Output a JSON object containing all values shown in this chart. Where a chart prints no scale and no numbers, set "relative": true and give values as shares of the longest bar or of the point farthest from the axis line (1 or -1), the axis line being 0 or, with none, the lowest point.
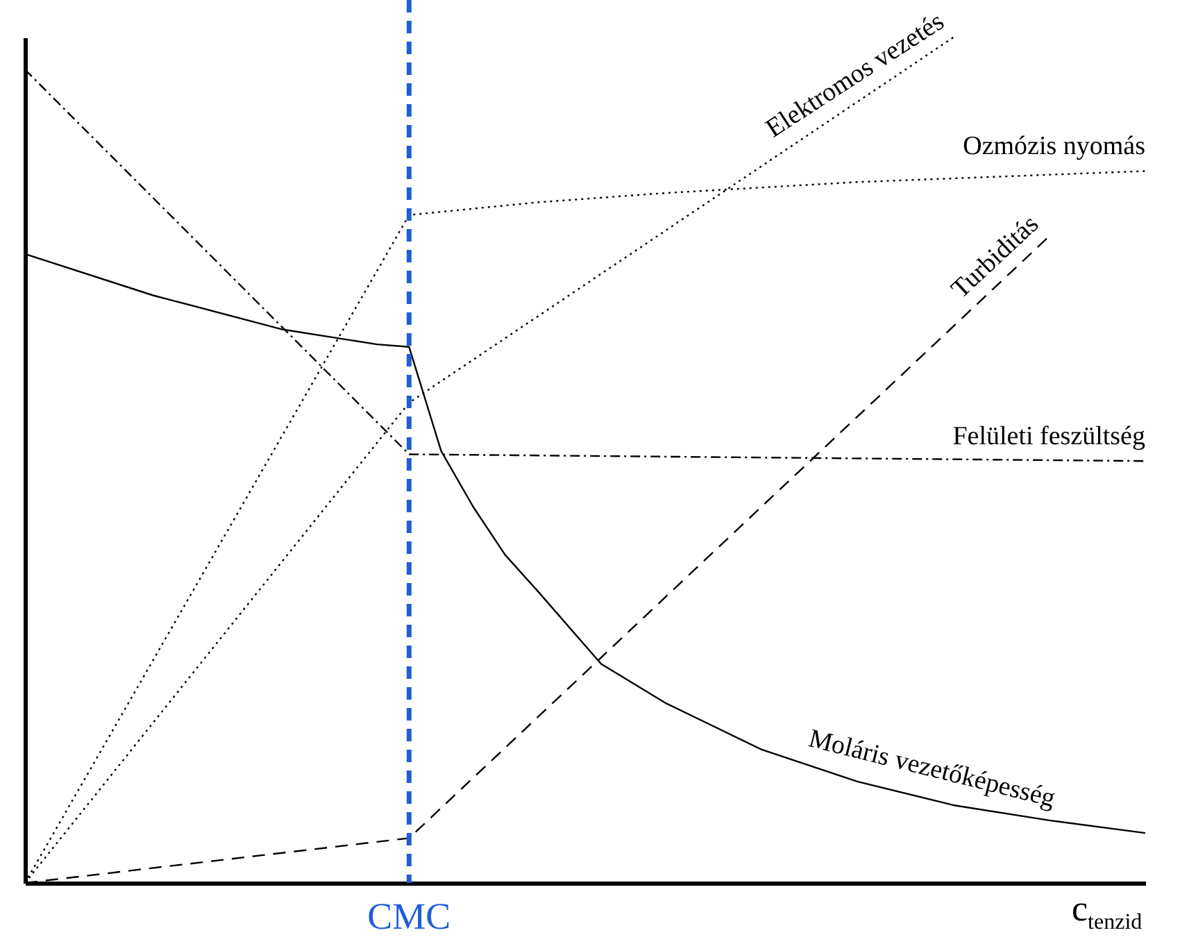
{
  "chart_data": {
    "type": "line",
    "relative": true,
    "xlabel": "c$_{tenzid}$",
    "legend": false,
    "marker": "none",
    "categories": [
      null,
      null,
      null,
      null,
      null,
      null,
      null,
      null,
      null,
      null,
      null,
      null,
      null,
      null,
      null,
      null,
      null,
      null,
      null,
      null,
      null,
      null,
      null,
      null,
      null,
      null,
      null,
      null,
      null,
      null,
      null,
      null,
      null,
      null,
      null,
      null
    ],
    "series": [
      {
        "name": "Moláris vezetőképesség",
        "color": "#000000",
        "line_style": "solid",
        "values": [
          0.744,
          null,
          null,
          null,
          0.695,
          null,
          null,
          null,
          0.655,
          null,
          null,
          0.637,
          0.634,
          0.511,
          0.445,
          0.388,
          0.346,
          null,
          0.259,
          null,
          0.213,
          null,
          null,
          0.158,
          null,
          null,
          0.12,
          null,
          null,
          0.092,
          null,
          null,
          0.074,
          null,
          null,
          0.059
        ]
      },
      {
        "name": "Felületi feszültség",
        "color": "#000000",
        "line_style": "dashdot",
        "values": [
          0.962,
          null,
          null,
          null,
          null,
          null,
          null,
          null,
          null,
          null,
          null,
          null,
          0.507,
          null,
          null,
          null,
          null,
          null,
          null,
          null,
          null,
          null,
          null,
          null,
          null,
          null,
          null,
          null,
          null,
          null,
          null,
          null,
          null,
          null,
          null,
          0.499
        ]
      },
      {
        "name": "Ozmózis nyomás",
        "color": "#000000",
        "line_style": "dotted",
        "values": [
          0,
          null,
          null,
          null,
          null,
          null,
          null,
          null,
          null,
          null,
          null,
          null,
          0.79,
          null,
          null,
          null,
          0.805,
          null,
          null,
          null,
          0.816,
          null,
          null,
          null,
          null,
          null,
          0.829,
          null,
          null,
          null,
          null,
          null,
          null,
          null,
          null,
          0.842
        ]
      },
      {
        "name": "Elektromos vezetés",
        "color": "#000000",
        "line_style": "dotted",
        "values": [
          0,
          null,
          null,
          null,
          null,
          null,
          null,
          null,
          null,
          null,
          null,
          null,
          0.568,
          null,
          null,
          null,
          null,
          null,
          null,
          null,
          null,
          null,
          null,
          null,
          null,
          null,
          null,
          null,
          null,
          1,
          null,
          null,
          null,
          null,
          null,
          null
        ]
      },
      {
        "name": "Turbiditás",
        "color": "#000000",
        "line_style": "dashed",
        "values": [
          0,
          null,
          null,
          null,
          null,
          null,
          null,
          null,
          null,
          null,
          null,
          null,
          0.053,
          null,
          null,
          null,
          null,
          null,
          null,
          null,
          null,
          null,
          null,
          null,
          null,
          null,
          null,
          null,
          null,
          null,
          null,
          null,
          0.765,
          null,
          null,
          null
        ]
      }
    ],
    "annotations": [
      "CMC"
    ]
  }
}
